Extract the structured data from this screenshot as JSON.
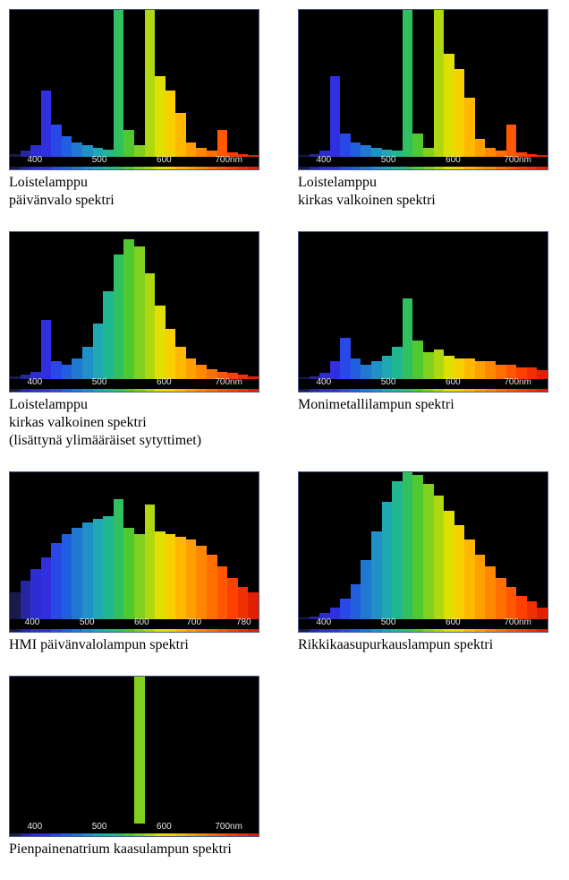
{
  "spectrum_colors": [
    "#1a1a4a",
    "#2626a0",
    "#2e2ed0",
    "#3030e0",
    "#2848e8",
    "#2060e0",
    "#2078d0",
    "#2090c8",
    "#20a8b0",
    "#20b890",
    "#30c060",
    "#50c830",
    "#80d020",
    "#b0d810",
    "#e0e000",
    "#f8d000",
    "#ffb800",
    "#ffa000",
    "#ff8800",
    "#ff7000",
    "#ff5800",
    "#ff4000",
    "#f03000",
    "#e02000"
  ],
  "axis_labels": [
    "400",
    "500",
    "600",
    "700nm"
  ],
  "axis_label_positions_pct": [
    10,
    36,
    62,
    88
  ],
  "charts": [
    {
      "caption_lines": [
        "Loistelamppu",
        "päivänvalo spektri"
      ],
      "heights_pct": [
        2,
        4,
        8,
        45,
        22,
        14,
        10,
        8,
        6,
        5,
        100,
        18,
        8,
        100,
        55,
        45,
        30,
        10,
        6,
        4,
        18,
        3,
        2,
        1
      ]
    },
    {
      "caption_lines": [
        "Loistelamppu",
        "kirkas valkoinen spektri"
      ],
      "heights_pct": [
        1,
        2,
        4,
        55,
        16,
        10,
        8,
        6,
        5,
        4,
        100,
        16,
        6,
        100,
        70,
        60,
        40,
        12,
        6,
        4,
        22,
        3,
        2,
        1
      ]
    },
    {
      "caption_lines": [
        "Loistelamppu",
        "kirkas valkoinen spektri",
        "(lisättynä ylimääräiset sytyttimet)"
      ],
      "heights_pct": [
        2,
        3,
        5,
        40,
        12,
        10,
        14,
        22,
        38,
        60,
        85,
        95,
        90,
        72,
        50,
        34,
        22,
        14,
        10,
        7,
        5,
        4,
        3,
        2
      ]
    },
    {
      "caption_lines": [
        "Monimetallilampun spektri"
      ],
      "heights_pct": [
        1,
        2,
        4,
        12,
        28,
        14,
        10,
        12,
        16,
        22,
        55,
        26,
        18,
        20,
        16,
        14,
        14,
        12,
        12,
        10,
        10,
        8,
        8,
        6
      ]
    },
    {
      "caption_lines": [
        "HMI päivänvalolampun spektri"
      ],
      "heights_pct": [
        18,
        26,
        34,
        42,
        52,
        58,
        62,
        66,
        68,
        70,
        82,
        62,
        58,
        78,
        60,
        58,
        56,
        54,
        50,
        44,
        36,
        28,
        22,
        18
      ],
      "axis_labels_override": [
        "400",
        "500",
        "600",
        "700",
        "780"
      ],
      "axis_positions_override": [
        9,
        31,
        53,
        74,
        94
      ]
    },
    {
      "caption_lines": [
        "Rikkikaasupurkauslampun spektri"
      ],
      "heights_pct": [
        1,
        2,
        4,
        8,
        14,
        24,
        40,
        60,
        80,
        94,
        100,
        98,
        92,
        84,
        74,
        64,
        54,
        44,
        36,
        28,
        22,
        16,
        12,
        8
      ]
    },
    {
      "caption_lines": [
        "Pienpainenatrium kaasulampun spektri"
      ],
      "heights_pct": [
        0,
        0,
        0,
        0,
        0,
        0,
        0,
        0,
        0,
        0,
        0,
        0,
        100,
        0,
        0,
        0,
        0,
        0,
        0,
        0,
        0,
        0,
        0,
        0
      ]
    }
  ]
}
